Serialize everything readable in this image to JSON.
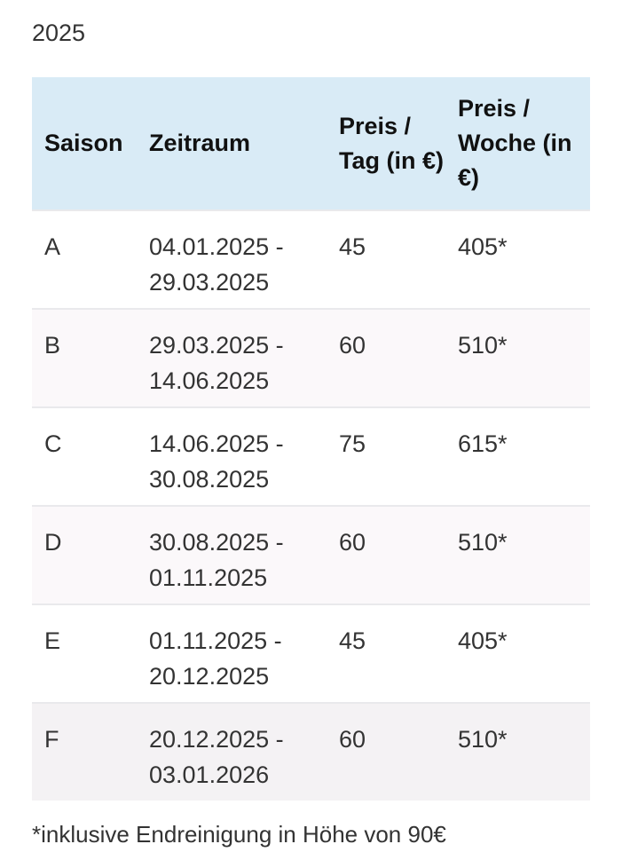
{
  "year": "2025",
  "table": {
    "headers": [
      "Saison",
      "Zeitraum",
      "Preis / Tag (in €)",
      "Preis / Woche (in €)"
    ],
    "rows": [
      {
        "saison": "A",
        "von": "04.01.2025 -",
        "bis": "29.03.2025",
        "tag": "45",
        "woche": "405*"
      },
      {
        "saison": "B",
        "von": "29.03.2025 -",
        "bis": "14.06.2025",
        "tag": "60",
        "woche": "510*"
      },
      {
        "saison": "C",
        "von": "14.06.2025 -",
        "bis": "30.08.2025",
        "tag": "75",
        "woche": "615*"
      },
      {
        "saison": "D",
        "von": "30.08.2025 -",
        "bis": "01.11.2025",
        "tag": "60",
        "woche": "510*"
      },
      {
        "saison": "E",
        "von": "01.11.2025 -",
        "bis": "20.12.2025",
        "tag": "45",
        "woche": "405*"
      },
      {
        "saison": "F",
        "von": "20.12.2025 -",
        "bis": "03.01.2026",
        "tag": "60",
        "woche": "510*"
      }
    ]
  },
  "footnote": "*inklusive Endreinigung in Höhe von 90€",
  "colors": {
    "header_bg": "#d9ebf6",
    "alt_row_bg": "#fbf8fa"
  }
}
